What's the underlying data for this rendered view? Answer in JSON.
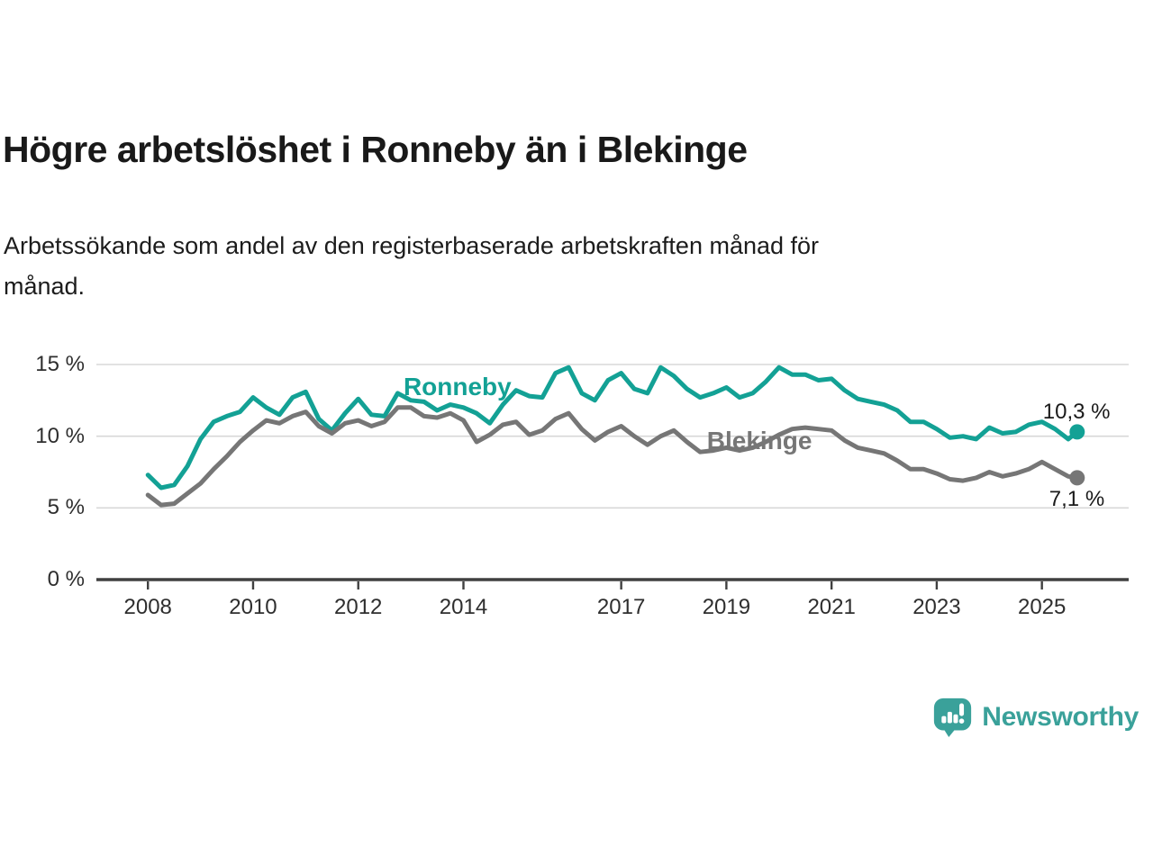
{
  "title": "Högre arbetslöshet i Ronneby än i Blekinge",
  "subtitle": {
    "line1": "Arbetssökande som andel av den registerbaserade arbetskraften månad för",
    "line2": "månad."
  },
  "colors": {
    "ronneby": "#13a195",
    "blekinge": "#767676",
    "grid": "#d8d8d8",
    "axis": "#404040",
    "brand": "#3aa19a",
    "text": "#1a1a1a"
  },
  "chart_data": {
    "type": "line",
    "title": "Högre arbetslöshet i Ronneby än i Blekinge",
    "xlabel": "",
    "ylabel": "Arbetssökande som andel av den registerbaserade arbetskraften",
    "unit": "%",
    "grid": "horizontal",
    "legend_position": "inline-labels",
    "xlim": [
      2007.02,
      2026.65
    ],
    "ylim": [
      0,
      15
    ],
    "x_ticks": [
      {
        "v": 2008,
        "label": "2008"
      },
      {
        "v": 2010,
        "label": "2010"
      },
      {
        "v": 2012,
        "label": "2012"
      },
      {
        "v": 2014,
        "label": "2014"
      },
      {
        "v": 2017,
        "label": "2017"
      },
      {
        "v": 2019,
        "label": "2019"
      },
      {
        "v": 2021,
        "label": "2021"
      },
      {
        "v": 2023,
        "label": "2023"
      },
      {
        "v": 2025,
        "label": "2025"
      }
    ],
    "y_ticks": [
      {
        "v": 0,
        "label": "0 %"
      },
      {
        "v": 5,
        "label": "5 %"
      },
      {
        "v": 10,
        "label": "10 %"
      },
      {
        "v": 15,
        "label": "15 %"
      }
    ],
    "x": [
      2008.0,
      2008.25,
      2008.5,
      2008.75,
      2009.0,
      2009.25,
      2009.5,
      2009.75,
      2010.0,
      2010.25,
      2010.5,
      2010.75,
      2011.0,
      2011.25,
      2011.5,
      2011.75,
      2012.0,
      2012.25,
      2012.5,
      2012.75,
      2013.0,
      2013.25,
      2013.5,
      2013.75,
      2014.0,
      2014.25,
      2014.5,
      2014.75,
      2015.0,
      2015.25,
      2015.5,
      2015.75,
      2016.0,
      2016.25,
      2016.5,
      2016.75,
      2017.0,
      2017.25,
      2017.5,
      2017.75,
      2018.0,
      2018.25,
      2018.5,
      2018.75,
      2019.0,
      2019.25,
      2019.5,
      2019.75,
      2020.0,
      2020.25,
      2020.5,
      2020.75,
      2021.0,
      2021.25,
      2021.5,
      2021.75,
      2022.0,
      2022.25,
      2022.5,
      2022.75,
      2023.0,
      2023.25,
      2023.5,
      2023.75,
      2024.0,
      2024.25,
      2024.5,
      2024.75,
      2025.0,
      2025.25,
      2025.5,
      2025.67
    ],
    "series": [
      {
        "name": "Ronneby",
        "color": "#13a195",
        "end_label": "10,3 %",
        "last_value": 10.3,
        "label_anchor": {
          "x": 2012.86,
          "y": 13.43
        },
        "values": [
          7.3,
          6.4,
          6.6,
          7.9,
          9.8,
          11.0,
          11.4,
          11.7,
          12.7,
          12.0,
          11.5,
          12.7,
          13.1,
          11.2,
          10.4,
          11.6,
          12.6,
          11.5,
          11.4,
          13.0,
          12.5,
          12.4,
          11.8,
          12.2,
          12.0,
          11.6,
          10.9,
          12.2,
          13.2,
          12.8,
          12.7,
          14.4,
          14.8,
          13.0,
          12.5,
          13.9,
          14.4,
          13.3,
          13.0,
          14.8,
          14.2,
          13.3,
          12.7,
          13.0,
          13.4,
          12.7,
          13.0,
          13.8,
          14.8,
          14.3,
          14.3,
          13.9,
          14.0,
          13.2,
          12.6,
          12.4,
          12.2,
          11.8,
          11.0,
          11.0,
          10.5,
          9.9,
          10.0,
          9.8,
          10.6,
          10.2,
          10.3,
          10.8,
          11.0,
          10.5,
          9.8,
          10.3
        ]
      },
      {
        "name": "Blekinge",
        "color": "#767676",
        "end_label": "7,1 %",
        "last_value": 7.1,
        "label_anchor": {
          "x": 2018.63,
          "y": 9.67
        },
        "values": [
          5.9,
          5.2,
          5.3,
          6.0,
          6.7,
          7.7,
          8.6,
          9.6,
          10.4,
          11.1,
          10.9,
          11.4,
          11.7,
          10.7,
          10.2,
          10.9,
          11.1,
          10.7,
          11.0,
          12.0,
          12.0,
          11.4,
          11.3,
          11.6,
          11.1,
          9.6,
          10.1,
          10.8,
          11.0,
          10.1,
          10.4,
          11.2,
          11.6,
          10.5,
          9.7,
          10.3,
          10.7,
          10.0,
          9.4,
          10.0,
          10.4,
          9.6,
          8.9,
          9.0,
          9.2,
          9.0,
          9.2,
          9.6,
          10.1,
          10.5,
          10.6,
          10.5,
          10.4,
          9.7,
          9.2,
          9.0,
          8.8,
          8.3,
          7.7,
          7.7,
          7.4,
          7.0,
          6.9,
          7.1,
          7.5,
          7.2,
          7.4,
          7.7,
          8.2,
          7.7,
          7.2,
          7.1
        ]
      }
    ]
  },
  "footer": {
    "brand": "Newsworthy",
    "logo_icon": "bar-chart-speech-bubble-icon"
  }
}
